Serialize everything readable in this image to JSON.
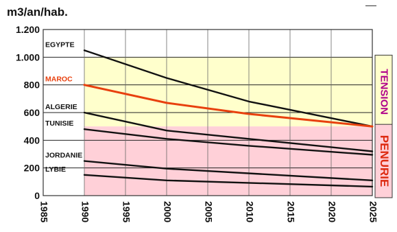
{
  "chart_data": {
    "type": "line",
    "ylabel": "m3/an/hab.",
    "xlim": [
      1985,
      2025
    ],
    "ylim": [
      0,
      1200
    ],
    "x_ticks": [
      1985,
      1990,
      1995,
      2000,
      2005,
      2010,
      2015,
      2020,
      2025
    ],
    "y_ticks": [
      0,
      200,
      400,
      600,
      800,
      1000,
      1200
    ],
    "y_tick_labels": [
      "0",
      "200",
      "400",
      "600",
      "800",
      "1.000",
      "1.200"
    ],
    "grid": true,
    "zones": [
      {
        "label": "TENSION",
        "from": 500,
        "to": 1000,
        "color": "#ffffcc",
        "text_color": "#b0008a"
      },
      {
        "label": "PENURIE",
        "from": 0,
        "to": 500,
        "color": "#ffd0d8",
        "text_color": "#dd2a10"
      }
    ],
    "series": [
      {
        "name": "EGYPTE",
        "color": "#111111",
        "label_color": "#111111",
        "x": [
          1990,
          2000,
          2010,
          2025
        ],
        "y": [
          1050,
          850,
          680,
          500
        ]
      },
      {
        "name": "MAROC",
        "color": "#e8400e",
        "label_color": "#e8400e",
        "x": [
          1990,
          2000,
          2010,
          2025
        ],
        "y": [
          800,
          670,
          590,
          500
        ]
      },
      {
        "name": "ALGERIE",
        "color": "#111111",
        "label_color": "#111111",
        "x": [
          1990,
          2000,
          2010,
          2025
        ],
        "y": [
          600,
          470,
          410,
          320
        ]
      },
      {
        "name": "TUNISIE",
        "color": "#111111",
        "label_color": "#111111",
        "x": [
          1990,
          2000,
          2010,
          2025
        ],
        "y": [
          480,
          410,
          360,
          295
        ]
      },
      {
        "name": "JORDANIE",
        "color": "#111111",
        "label_color": "#111111",
        "x": [
          1990,
          2000,
          2025
        ],
        "y": [
          250,
          195,
          110
        ]
      },
      {
        "name": "LYBIE",
        "color": "#111111",
        "label_color": "#111111",
        "x": [
          1990,
          2000,
          2025
        ],
        "y": [
          150,
          110,
          65
        ]
      }
    ]
  }
}
